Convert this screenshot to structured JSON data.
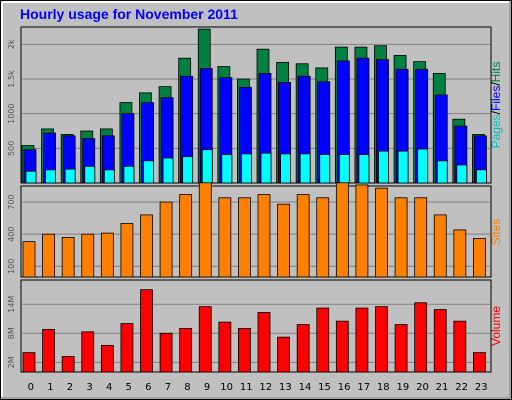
{
  "colors": {
    "background": "#c0c0c0",
    "plot_bg": "#c0c0c0",
    "hits": "#008040",
    "files": "#0000ff",
    "pages": "#00ffff",
    "sites": "#ff8000",
    "volume": "#ff0000",
    "title": "#0000ff",
    "grid": "#808080"
  },
  "chart_data": [
    {
      "type": "bar",
      "title": "Hourly usage for November 2011",
      "x": [
        "0",
        "1",
        "2",
        "3",
        "4",
        "5",
        "6",
        "7",
        "8",
        "9",
        "10",
        "11",
        "12",
        "13",
        "14",
        "15",
        "16",
        "17",
        "18",
        "19",
        "20",
        "21",
        "22",
        "23"
      ],
      "ylabel_parts": [
        {
          "text": "Pages",
          "color": "#00c0c0"
        },
        {
          "text": "/",
          "color": "#000000"
        },
        {
          "text": "Files",
          "color": "#0000ff"
        },
        {
          "text": "/",
          "color": "#000000"
        },
        {
          "text": "Hits",
          "color": "#008040"
        }
      ],
      "ytick_labels": [
        "500",
        "1000",
        "1.5k",
        "2k"
      ],
      "ytick_values": [
        500,
        1000,
        1500,
        2000
      ],
      "ylim": [
        0,
        2250
      ],
      "series": [
        {
          "name": "Hits",
          "values": [
            540,
            780,
            700,
            750,
            780,
            1160,
            1300,
            1390,
            1800,
            2220,
            1680,
            1500,
            1930,
            1740,
            1720,
            1660,
            1960,
            1960,
            1980,
            1840,
            1750,
            1580,
            920,
            700
          ]
        },
        {
          "name": "Files",
          "values": [
            480,
            720,
            680,
            640,
            680,
            1000,
            1160,
            1230,
            1540,
            1650,
            1520,
            1380,
            1580,
            1450,
            1540,
            1460,
            1760,
            1800,
            1780,
            1640,
            1640,
            1270,
            820,
            680
          ]
        },
        {
          "name": "Pages",
          "values": [
            170,
            190,
            200,
            240,
            190,
            240,
            320,
            360,
            380,
            480,
            410,
            420,
            430,
            420,
            420,
            410,
            410,
            410,
            460,
            460,
            490,
            320,
            260,
            190
          ]
        }
      ]
    },
    {
      "type": "bar",
      "x": [
        "0",
        "1",
        "2",
        "3",
        "4",
        "5",
        "6",
        "7",
        "8",
        "9",
        "10",
        "11",
        "12",
        "13",
        "14",
        "15",
        "16",
        "17",
        "18",
        "19",
        "20",
        "21",
        "22",
        "23"
      ],
      "ylabel_parts": [
        {
          "text": "Sites",
          "color": "#ff8000"
        }
      ],
      "ytick_labels": [
        "100",
        "400",
        "700"
      ],
      "ytick_values": [
        100,
        400,
        700
      ],
      "ylim": [
        0,
        850
      ],
      "series": [
        {
          "name": "Sites",
          "values": [
            330,
            400,
            370,
            400,
            410,
            500,
            580,
            700,
            770,
            880,
            740,
            740,
            770,
            680,
            770,
            740,
            880,
            860,
            830,
            740,
            740,
            580,
            440,
            360
          ]
        }
      ]
    },
    {
      "type": "bar",
      "x": [
        "0",
        "1",
        "2",
        "3",
        "4",
        "5",
        "6",
        "7",
        "8",
        "9",
        "10",
        "11",
        "12",
        "13",
        "14",
        "15",
        "16",
        "17",
        "18",
        "19",
        "20",
        "21",
        "22",
        "23"
      ],
      "xlabel": "",
      "ylabel_parts": [
        {
          "text": "Volume",
          "color": "#ff0000"
        }
      ],
      "ytick_labels": [
        "2M",
        "8M",
        "14M"
      ],
      "ytick_values": [
        2,
        8,
        14
      ],
      "ylim": [
        0,
        19
      ],
      "series": [
        {
          "name": "Volume",
          "values": [
            4.0,
            8.8,
            3.2,
            8.3,
            5.5,
            10.0,
            17.0,
            8.0,
            9.0,
            13.5,
            10.3,
            9.0,
            12.3,
            7.2,
            9.8,
            13.2,
            10.5,
            13.2,
            13.5,
            9.8,
            14.3,
            12.9,
            10.5,
            4.0
          ]
        }
      ]
    }
  ]
}
